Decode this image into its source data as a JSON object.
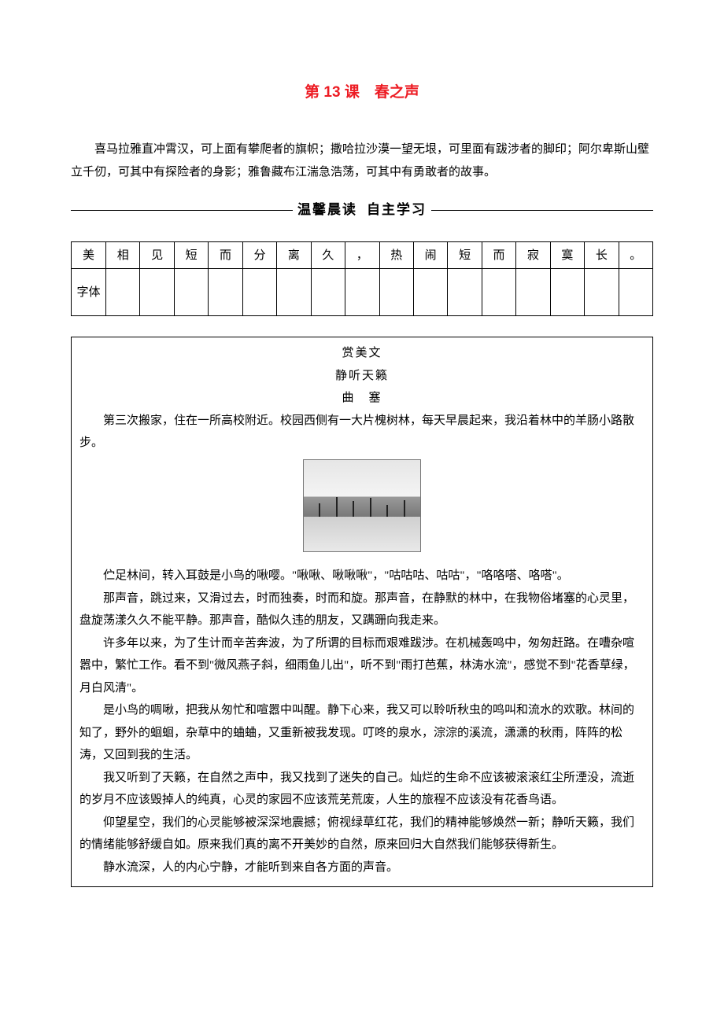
{
  "title": {
    "text": "第 13 课　春之声",
    "color": "#ed1c24",
    "fontsize": 19
  },
  "intro": "喜马拉雅直冲霄汉，可上面有攀爬者的旗帜；撒哈拉沙漠一望无垠，可里面有跋涉者的脚印；阿尔卑斯山壁立千仞，可其中有探险者的身影；雅鲁藏布江湍急浩荡，可其中有勇敢者的故事。",
  "section_header": {
    "left": "温馨晨读",
    "right": "自主学习",
    "fontsize": 17,
    "line_color": "#000000"
  },
  "grid": {
    "row_label_top": "美",
    "row_label_bottom": "字体",
    "cells": [
      "相",
      "见",
      "短",
      "而",
      "分",
      "离",
      "久",
      "，",
      "热",
      "闹",
      "短",
      "而",
      "寂",
      "寞",
      "长",
      "。"
    ]
  },
  "essay": {
    "heading1": "赏美文",
    "heading2": "静听天籁",
    "author": "曲　塞",
    "paragraphs": [
      "第三次搬家，住在一所高校附近。校园西侧有一大片槐树林，每天早晨起来，我沿着林中的羊肠小路散步。",
      "__IMAGE__",
      "伫足林间，转入耳鼓是小鸟的啾嘤。\"啾啾、啾啾啾\"，\"咕咕咕、咕咕\"，\"咯咯嗒、咯嗒\"。",
      "那声音，跳过来，又滑过去，时而独奏，时而和旋。那声音，在静默的林中，在我物俗堵塞的心灵里，盘旋荡漾久久不能平静。那声音，酷似久违的朋友，又蹒跚向我走来。",
      "许多年以来，为了生计而辛苦奔波，为了所谓的目标而艰难跋涉。在机械轰鸣中，匆匆赶路。在嘈杂喧嚣中，繁忙工作。看不到\"微风燕子斜，细雨鱼儿出\"，听不到\"雨打芭蕉，林涛水流\"，感觉不到\"花香草绿，月白风清\"。",
      "是小鸟的啁啾，把我从匆忙和喧嚣中叫醒。静下心来，我又可以聆听秋虫的鸣叫和流水的欢歌。林间的知了，野外的蛔蛔，杂草中的蛐蛐，又重新被我发现。叮咚的泉水，淙淙的溪流，潇潇的秋雨，阵阵的松涛，又回到我的生活。",
      "我又听到了天籁，在自然之声中，我又找到了迷失的自己。灿烂的生命不应该被滚滚红尘所湮没，流逝的岁月不应该毁掉人的纯真，心灵的家园不应该荒芜荒废，人生的旅程不应该没有花香鸟语。",
      "仰望星空，我们的心灵能够被深深地震撼；俯视绿草红花，我们的精神能够焕然一新；静听天籁，我们的情绪能够舒缓自如。原来我们真的离不开美妙的自然，原来回归大自然我们能够获得新生。",
      "静水流深，人的内心宁静，才能听到来自各方面的声音。"
    ]
  },
  "style": {
    "body_fontsize": 15,
    "body_color": "#000000",
    "background": "#ffffff",
    "border_color": "#000000"
  }
}
